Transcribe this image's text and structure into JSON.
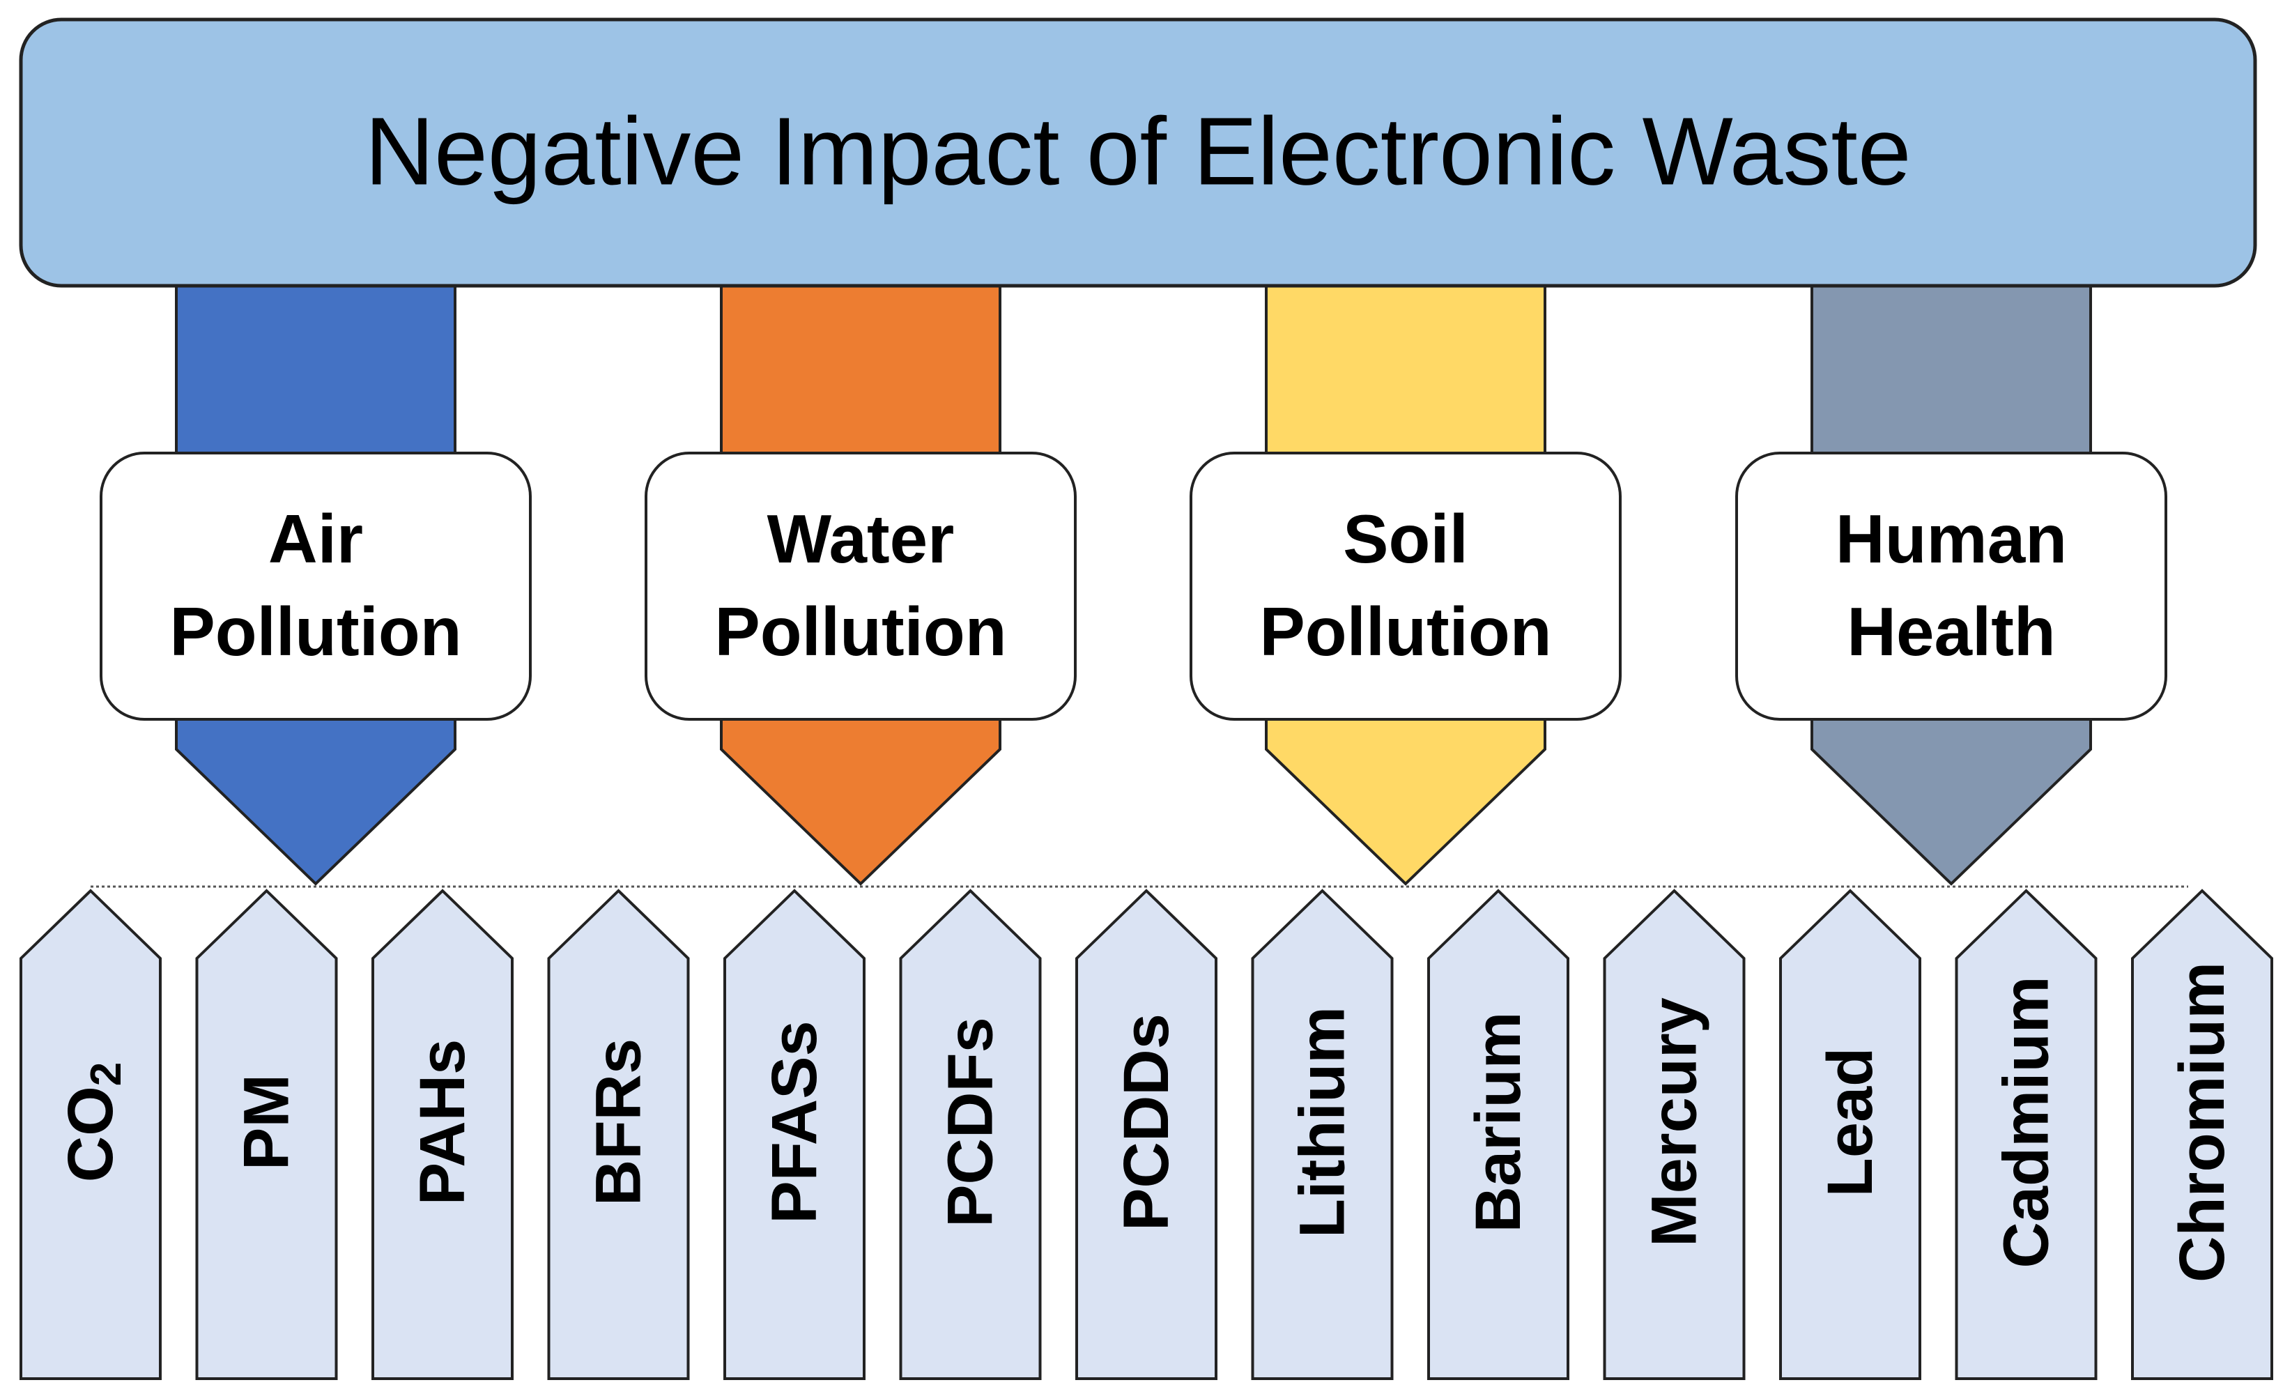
{
  "title": "Negative Impact of Electronic Waste",
  "colors": {
    "title_fill": "#9DC3E6",
    "item_fill": "#DAE3F3",
    "outline": "#222222"
  },
  "categories": [
    {
      "line1": "Air",
      "line2": "Pollution",
      "color": "#4472C4"
    },
    {
      "line1": "Water",
      "line2": "Pollution",
      "color": "#ED7D31"
    },
    {
      "line1": "Soil",
      "line2": "Pollution",
      "color": "#FFD966"
    },
    {
      "line1": "Human",
      "line2": "Health",
      "color": "#8497B0"
    }
  ],
  "items": [
    {
      "label": "CO",
      "subscript": "2"
    },
    {
      "label": "PM"
    },
    {
      "label": "PAHs"
    },
    {
      "label": "BFRs"
    },
    {
      "label": "PFASs"
    },
    {
      "label": "PCDFs"
    },
    {
      "label": "PCDDs"
    },
    {
      "label": "Lithium"
    },
    {
      "label": "Barium"
    },
    {
      "label": "Mercury"
    },
    {
      "label": "Lead"
    },
    {
      "label": "Cadmium"
    },
    {
      "label": "Chromium"
    }
  ]
}
